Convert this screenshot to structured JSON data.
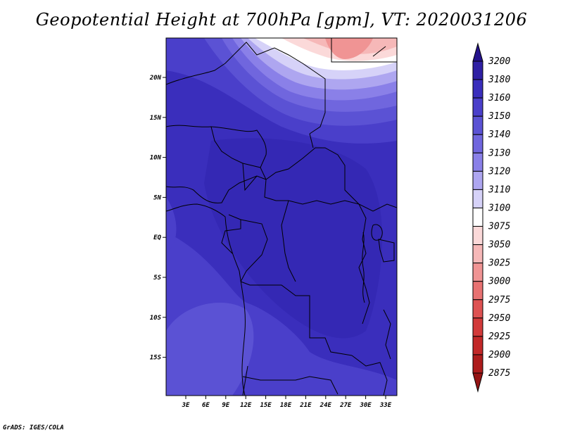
{
  "title": "Geopotential Height at 700hPa [gpm], VT: 2020031206",
  "credit": "GrADS: IGES/COLA",
  "map": {
    "lat_labels": [
      "20N",
      "15N",
      "10N",
      "5N",
      "EQ",
      "5S",
      "10S",
      "15S"
    ],
    "lon_labels": [
      "3E",
      "6E",
      "9E",
      "12E",
      "15E",
      "18E",
      "21E",
      "24E",
      "27E",
      "30E",
      "33E"
    ]
  },
  "colorbar": {
    "levels": [
      "3200",
      "3180",
      "3160",
      "3150",
      "3140",
      "3130",
      "3120",
      "3110",
      "3100",
      "3075",
      "3050",
      "3025",
      "3000",
      "2975",
      "2950",
      "2925",
      "2900",
      "2875"
    ],
    "colors": [
      "#24128c",
      "#2f20a4",
      "#3a2ebc",
      "#4a3fca",
      "#5b52d4",
      "#7066de",
      "#8a80e8",
      "#aea6f0",
      "#d6d2f8",
      "#ffffff",
      "#fbd9d9",
      "#f6b8b8",
      "#f09494",
      "#e87272",
      "#de5252",
      "#d23a3a",
      "#c22828",
      "#ad1c1c",
      "#951414"
    ]
  }
}
